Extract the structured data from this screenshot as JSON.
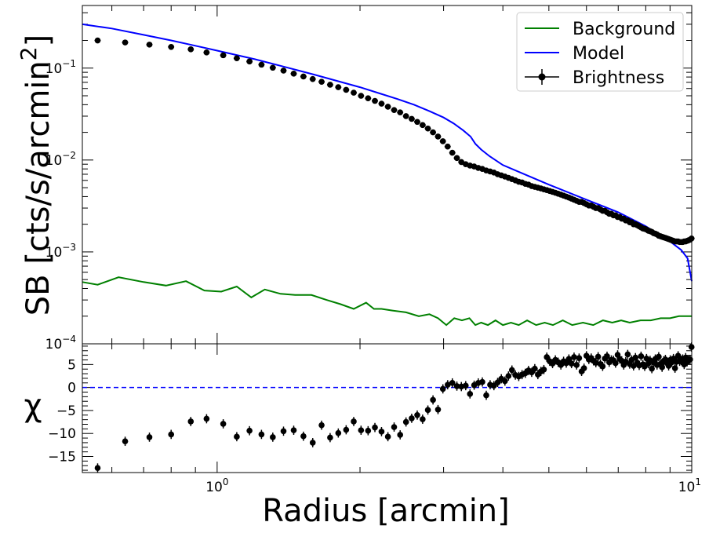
{
  "chart_data": [
    {
      "type": "line",
      "panel": "surface-brightness",
      "ylabel": "SB [cts/s/arcmin$^2$]",
      "xscale": "log",
      "yscale": "log",
      "xlim": [
        0.52,
        10
      ],
      "ylim": [
        0.0001,
        0.48
      ],
      "ytick_labels": [
        "10^-4",
        "10^-3",
        "10^-2",
        "10^-1"
      ],
      "legend": "top-right",
      "series": [
        {
          "name": "Background",
          "kind": "line",
          "color": "#008000",
          "x": [
            0.52,
            0.56,
            0.62,
            0.7,
            0.78,
            0.86,
            0.94,
            1.02,
            1.1,
            1.18,
            1.26,
            1.36,
            1.46,
            1.58,
            1.7,
            1.82,
            1.94,
            2.06,
            2.14,
            2.22,
            2.34,
            2.5,
            2.66,
            2.8,
            2.92,
            3.04,
            3.16,
            3.28,
            3.4,
            3.5,
            3.6,
            3.72,
            3.86,
            4.0,
            4.16,
            4.32,
            4.5,
            4.7,
            4.9,
            5.1,
            5.35,
            5.6,
            5.9,
            6.2,
            6.5,
            6.8,
            7.1,
            7.4,
            7.8,
            8.2,
            8.6,
            9.0,
            9.4,
            9.8,
            10.0
          ],
          "y": [
            0.00047,
            0.00044,
            0.00053,
            0.00047,
            0.00043,
            0.00048,
            0.00038,
            0.00037,
            0.00042,
            0.00032,
            0.00039,
            0.00035,
            0.00034,
            0.00034,
            0.0003,
            0.00027,
            0.00024,
            0.00028,
            0.00024,
            0.00024,
            0.00023,
            0.00022,
            0.0002,
            0.00021,
            0.00019,
            0.00016,
            0.00019,
            0.00018,
            0.00019,
            0.00016,
            0.00017,
            0.00016,
            0.00018,
            0.00016,
            0.00017,
            0.00016,
            0.00018,
            0.00016,
            0.00017,
            0.00016,
            0.00018,
            0.00016,
            0.00017,
            0.00016,
            0.00018,
            0.00017,
            0.00018,
            0.00017,
            0.00018,
            0.00018,
            0.00019,
            0.00019,
            0.0002,
            0.0002,
            0.0002
          ]
        },
        {
          "name": "Model",
          "kind": "line",
          "color": "#0000ff",
          "x": [
            0.52,
            0.6,
            0.7,
            0.8,
            0.9,
            1.0,
            1.2,
            1.4,
            1.6,
            1.8,
            2.0,
            2.2,
            2.4,
            2.6,
            2.8,
            3.0,
            3.15,
            3.3,
            3.42,
            3.5,
            3.6,
            3.75,
            4.0,
            4.5,
            5.0,
            6.0,
            7.0,
            8.0,
            9.0,
            9.5,
            9.8,
            10.0
          ],
          "y": [
            0.3,
            0.27,
            0.23,
            0.2,
            0.175,
            0.155,
            0.125,
            0.102,
            0.085,
            0.072,
            0.062,
            0.053,
            0.046,
            0.04,
            0.034,
            0.029,
            0.025,
            0.021,
            0.018,
            0.015,
            0.013,
            0.011,
            0.0088,
            0.0068,
            0.0054,
            0.0037,
            0.0027,
            0.0019,
            0.0013,
            0.00105,
            0.00085,
            0.00048
          ]
        },
        {
          "name": "Brightness",
          "kind": "errorbar",
          "color": "#000000",
          "x": [
            0.56,
            0.64,
            0.72,
            0.8,
            0.88,
            0.95,
            1.03,
            1.1,
            1.17,
            1.24,
            1.31,
            1.38,
            1.45,
            1.52,
            1.59,
            1.66,
            1.73,
            1.8,
            1.87,
            1.94,
            2.01,
            2.08,
            2.15,
            2.22,
            2.29,
            2.36,
            2.43,
            2.5,
            2.57,
            2.64,
            2.71,
            2.78,
            2.85,
            2.92,
            2.99,
            3.06,
            3.13,
            3.2,
            3.27,
            3.34,
            3.41,
            3.48,
            3.55,
            3.62,
            3.69,
            3.76,
            3.83,
            3.9,
            3.97,
            4.04,
            4.11,
            4.18,
            4.25,
            4.32,
            4.39,
            4.46,
            4.53,
            4.6,
            4.67,
            4.74,
            4.81,
            4.88,
            4.95,
            5.02,
            5.09,
            5.16,
            5.23,
            5.3,
            5.37,
            5.44,
            5.51,
            5.58,
            5.65,
            5.72,
            5.79,
            5.86,
            5.93,
            6.0,
            6.07,
            6.14,
            6.21,
            6.28,
            6.35,
            6.42,
            6.49,
            6.56,
            6.63,
            6.7,
            6.77,
            6.84,
            6.91,
            6.98,
            7.05,
            7.12,
            7.19,
            7.26,
            7.33,
            7.4,
            7.47,
            7.54,
            7.61,
            7.68,
            7.75,
            7.82,
            7.89,
            7.96,
            8.03,
            8.1,
            8.17,
            8.24,
            8.31,
            8.38,
            8.45,
            8.52,
            8.59,
            8.66,
            8.73,
            8.8,
            8.87,
            8.94,
            9.01,
            9.08,
            9.15,
            9.22,
            9.29,
            9.36,
            9.43,
            9.5,
            9.57,
            9.64,
            9.71,
            9.78,
            9.85,
            9.92,
            9.99
          ],
          "y": [
            0.2,
            0.19,
            0.18,
            0.17,
            0.16,
            0.148,
            0.138,
            0.128,
            0.118,
            0.109,
            0.101,
            0.094,
            0.087,
            0.081,
            0.076,
            0.071,
            0.066,
            0.062,
            0.058,
            0.054,
            0.05,
            0.047,
            0.044,
            0.041,
            0.038,
            0.035,
            0.033,
            0.03,
            0.028,
            0.026,
            0.024,
            0.022,
            0.02,
            0.018,
            0.016,
            0.014,
            0.012,
            0.0105,
            0.0095,
            0.009,
            0.0087,
            0.0085,
            0.0082,
            0.008,
            0.0077,
            0.0075,
            0.0073,
            0.007,
            0.0068,
            0.0066,
            0.0064,
            0.0062,
            0.006,
            0.0058,
            0.0057,
            0.0055,
            0.0054,
            0.0052,
            0.0051,
            0.005,
            0.0049,
            0.0048,
            0.0047,
            0.0046,
            0.0045,
            0.0044,
            0.0043,
            0.0042,
            0.0041,
            0.004,
            0.0039,
            0.0038,
            0.0037,
            0.0036,
            0.0035,
            0.0035,
            0.0034,
            0.0033,
            0.0032,
            0.0032,
            0.0031,
            0.003,
            0.003,
            0.0029,
            0.0028,
            0.0028,
            0.0027,
            0.0026,
            0.0026,
            0.0025,
            0.0025,
            0.0024,
            0.0024,
            0.0023,
            0.0023,
            0.0022,
            0.0022,
            0.0021,
            0.0021,
            0.002,
            0.002,
            0.00195,
            0.0019,
            0.00185,
            0.0018,
            0.00178,
            0.00175,
            0.0017,
            0.00168,
            0.00165,
            0.0016,
            0.00158,
            0.00155,
            0.0015,
            0.00148,
            0.00146,
            0.00144,
            0.00142,
            0.0014,
            0.00138,
            0.00136,
            0.00134,
            0.00132,
            0.0013,
            0.0013,
            0.0013,
            0.00128,
            0.00128,
            0.00128,
            0.0013,
            0.0013,
            0.00132,
            0.00134,
            0.00136,
            0.0014
          ]
        }
      ]
    },
    {
      "type": "scatter",
      "panel": "residuals",
      "xlabel": "Radius [arcmin]",
      "ylabel": "χ",
      "xscale": "log",
      "xlim": [
        0.52,
        10
      ],
      "ylim": [
        -18.5,
        9.5
      ],
      "ytick_labels": [
        "5",
        "0",
        "−5",
        "−10",
        "−15"
      ],
      "yticks": [
        5,
        0,
        -5,
        -10,
        -15
      ],
      "xtick_labels": [
        "10^0",
        "10^1"
      ],
      "xticks": [
        1,
        10
      ],
      "reference_line": {
        "y": 0,
        "color": "#0000ff",
        "style": "dashed"
      },
      "series": [
        {
          "name": "",
          "kind": "errorbar",
          "color": "#000000",
          "x": [
            0.56,
            0.64,
            0.72,
            0.8,
            0.88,
            0.95,
            1.03,
            1.1,
            1.17,
            1.24,
            1.31,
            1.38,
            1.45,
            1.52,
            1.59,
            1.66,
            1.73,
            1.8,
            1.87,
            1.94,
            2.01,
            2.08,
            2.15,
            2.22,
            2.29,
            2.36,
            2.43,
            2.5,
            2.57,
            2.64,
            2.71,
            2.78,
            2.85,
            2.92,
            2.99,
            3.06,
            3.13,
            3.2,
            3.27,
            3.34,
            3.41,
            3.48,
            3.55,
            3.62,
            3.69,
            3.76,
            3.83,
            3.9,
            3.97,
            4.04,
            4.11,
            4.18,
            4.25,
            4.32,
            4.39,
            4.46,
            4.53,
            4.6,
            4.67,
            4.74,
            4.81,
            4.88,
            4.95,
            5.02,
            5.09,
            5.16,
            5.23,
            5.3,
            5.37,
            5.44,
            5.51,
            5.58,
            5.65,
            5.72,
            5.79,
            5.86,
            5.93,
            6.0,
            6.07,
            6.14,
            6.21,
            6.28,
            6.35,
            6.42,
            6.49,
            6.56,
            6.63,
            6.7,
            6.77,
            6.84,
            6.91,
            6.98,
            7.05,
            7.12,
            7.19,
            7.26,
            7.33,
            7.4,
            7.47,
            7.54,
            7.61,
            7.68,
            7.75,
            7.82,
            7.89,
            7.96,
            8.03,
            8.1,
            8.17,
            8.24,
            8.31,
            8.38,
            8.45,
            8.52,
            8.59,
            8.66,
            8.73,
            8.8,
            8.87,
            8.94,
            9.01,
            9.08,
            9.15,
            9.22,
            9.29,
            9.36,
            9.43,
            9.5,
            9.57,
            9.64,
            9.71,
            9.78,
            9.85,
            9.92,
            9.99
          ],
          "y": [
            -17.5,
            -11.7,
            -10.8,
            -10.2,
            -7.4,
            -6.8,
            -7.9,
            -10.7,
            -9.4,
            -10.2,
            -10.8,
            -9.5,
            -9.3,
            -10.6,
            -12.0,
            -8.2,
            -10.9,
            -9.9,
            -9.2,
            -7.4,
            -9.3,
            -9.4,
            -8.7,
            -9.6,
            -10.7,
            -8.6,
            -10.3,
            -7.5,
            -6.7,
            -6.0,
            -6.9,
            -4.9,
            -2.7,
            -4.8,
            -0.3,
            0.6,
            1.0,
            0.3,
            0.2,
            0.4,
            -1.4,
            0.5,
            1.0,
            1.2,
            -1.7,
            0.6,
            0.4,
            1.1,
            1.9,
            1.4,
            2.5,
            3.8,
            2.7,
            2.4,
            2.8,
            3.1,
            3.7,
            3.3,
            4.1,
            2.8,
            3.5,
            3.9,
            6.6,
            5.7,
            5.2,
            6.0,
            5.5,
            4.9,
            5.7,
            5.3,
            6.2,
            5.2,
            6.6,
            4.9,
            6.4,
            3.5,
            4.2,
            6.9,
            6.1,
            6.4,
            5.8,
            5.4,
            6.7,
            5.1,
            4.6,
            6.3,
            6.8,
            5.5,
            6.0,
            5.9,
            5.3,
            7.1,
            6.2,
            5.8,
            4.9,
            5.6,
            7.2,
            5.1,
            6.0,
            4.7,
            6.5,
            5.4,
            4.8,
            6.8,
            5.0,
            4.6,
            6.3,
            5.2,
            5.9,
            4.1,
            5.5,
            6.2,
            4.9,
            6.7,
            5.1,
            4.4,
            5.8,
            6.1,
            5.3,
            4.7,
            6.0,
            5.5,
            6.3,
            4.2,
            5.6,
            6.9,
            5.7,
            5.9,
            6.2,
            5.0,
            6.5,
            5.6,
            6.0,
            6.1,
            8.8
          ]
        }
      ]
    }
  ]
}
